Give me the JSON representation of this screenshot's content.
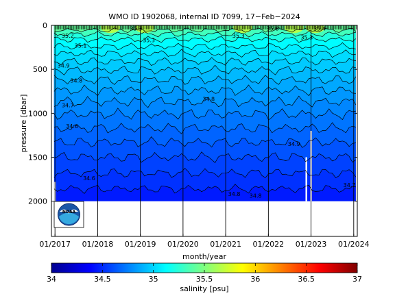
{
  "chart_data": [
    {
      "type": "heatmap",
      "title": "WMO ID 1902068, internal ID 7099, 17−Feb−2024",
      "xlabel": "month/year",
      "ylabel": "pressure [dbar]",
      "x_ticks": [
        "01/2017",
        "01/2018",
        "01/2019",
        "01/2020",
        "01/2021",
        "01/2022",
        "01/2023",
        "01/2024"
      ],
      "y_ticks": [
        "0",
        "500",
        "1000",
        "1500",
        "2000"
      ],
      "xlim": [
        "2016-12",
        "2024-02"
      ],
      "ylim": [
        0,
        2400
      ],
      "y_reversed": true,
      "grid": false,
      "profile_max_pressure": 2000,
      "contour_levels": [
        {
          "salinity": 34.5,
          "depth": 1860,
          "amp": 25
        },
        {
          "salinity": 34.55,
          "depth": 1680,
          "amp": 28
        },
        {
          "salinity": 34.6,
          "depth": 1500,
          "amp": 30
        },
        {
          "salinity": 34.65,
          "depth": 1330,
          "amp": 30
        },
        {
          "salinity": 34.7,
          "depth": 1170,
          "amp": 30
        },
        {
          "salinity": 34.75,
          "depth": 1010,
          "amp": 32
        },
        {
          "salinity": 34.8,
          "depth": 870,
          "amp": 32
        },
        {
          "salinity": 34.85,
          "depth": 740,
          "amp": 30
        },
        {
          "salinity": 34.9,
          "depth": 620,
          "amp": 28
        },
        {
          "salinity": 34.95,
          "depth": 510,
          "amp": 26
        },
        {
          "salinity": 35.0,
          "depth": 410,
          "amp": 24
        },
        {
          "salinity": 35.05,
          "depth": 320,
          "amp": 22
        },
        {
          "salinity": 35.1,
          "depth": 240,
          "amp": 20
        },
        {
          "salinity": 35.2,
          "depth": 160,
          "amp": 18
        },
        {
          "salinity": 35.3,
          "depth": 100,
          "amp": 16
        },
        {
          "salinity": 35.4,
          "depth": 55,
          "amp": 14
        }
      ],
      "contour_labels": [
        {
          "text": "35.2",
          "date": "2017.3",
          "p": 140
        },
        {
          "text": "35.1",
          "date": "2017.6",
          "p": 255
        },
        {
          "text": "34.9",
          "date": "2017.2",
          "p": 480
        },
        {
          "text": "34.8",
          "date": "2017.5",
          "p": 650
        },
        {
          "text": "34.7",
          "date": "2017.3",
          "p": 930
        },
        {
          "text": "34.6",
          "date": "2017.4",
          "p": 1170
        },
        {
          "text": "34.6",
          "date": "2017.8",
          "p": 1760
        },
        {
          "text": "35.3",
          "date": "2018.9",
          "p": 60
        },
        {
          "text": "35.3",
          "date": "2019.2",
          "p": 190
        },
        {
          "text": "34.8",
          "date": "2020.6",
          "p": 860
        },
        {
          "text": "35.3",
          "date": "2021.3",
          "p": 140
        },
        {
          "text": "34.8",
          "date": "2021.2",
          "p": 1940
        },
        {
          "text": "34.8",
          "date": "2021.7",
          "p": 1960
        },
        {
          "text": "35.6",
          "date": "2022.1",
          "p": 60
        },
        {
          "text": "35.3",
          "date": "2022.9",
          "p": 160
        },
        {
          "text": "35.4",
          "date": "2023.2",
          "p": 60
        },
        {
          "text": "34.9",
          "date": "2022.6",
          "p": 1370
        },
        {
          "text": "34.7",
          "date": "2023.9",
          "p": 1840
        }
      ],
      "gaps": [
        {
          "from": "2016.98",
          "to": "2017.02",
          "p_top": 1780
        },
        {
          "from": "2022.87",
          "to": "2022.91",
          "p_top": 1500
        },
        {
          "from": "2022.98",
          "to": "2023.02",
          "p_top": 1200
        }
      ]
    },
    {
      "type": "colorbar",
      "xlabel": "salinity [psu]",
      "range": [
        34,
        37
      ],
      "ticks": [
        "34",
        "34.5",
        "35",
        "35.5",
        "36",
        "36.5",
        "37"
      ],
      "colormap": "jet"
    }
  ],
  "logo": {
    "text": "NOAA"
  }
}
